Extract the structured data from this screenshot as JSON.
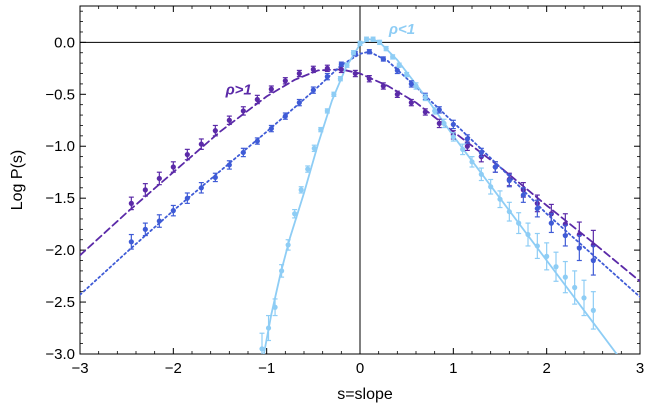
{
  "chart_data": {
    "type": "scatter",
    "title": "",
    "xlabel": "s=slope",
    "ylabel": "Log P(s)",
    "xlim": [
      -3,
      3
    ],
    "ylim": [
      -3,
      0.35
    ],
    "x_ticks": [
      -3,
      -2,
      -1,
      0,
      1,
      2,
      3
    ],
    "x_tick_labels": [
      "−3",
      "−2",
      "−1",
      "0",
      "1",
      "2",
      "3"
    ],
    "y_ticks": [
      -3,
      -2.5,
      -2,
      -1.5,
      -1,
      -0.5,
      0
    ],
    "y_tick_labels": [
      "−3.0",
      "−2.5",
      "−2.0",
      "−1.5",
      "−1.0",
      "−0.5",
      "0.0"
    ],
    "grid": false,
    "reference_lines": {
      "x": 0,
      "y": 0
    },
    "annotations": [
      {
        "text": "ρ>1",
        "x": -1.3,
        "y": -0.5,
        "series": "ρ>1"
      },
      {
        "text": "ρ<1",
        "x": 0.45,
        "y": 0.08,
        "series": "ρ<1"
      }
    ],
    "series": [
      {
        "name": "ρ>1",
        "color": "#5b2aa8",
        "fit_style": "dashed",
        "x": [
          -2.45,
          -2.3,
          -2.15,
          -2.0,
          -1.85,
          -1.7,
          -1.55,
          -1.4,
          -1.25,
          -1.1,
          -0.95,
          -0.8,
          -0.65,
          -0.5,
          -0.35,
          -0.2,
          -0.05,
          0.1,
          0.25,
          0.4,
          0.55,
          0.7,
          0.85,
          1.0,
          1.15,
          1.3,
          1.45,
          1.6,
          1.75,
          1.9,
          2.05,
          2.2,
          2.35,
          2.5
        ],
        "y": [
          -1.55,
          -1.42,
          -1.31,
          -1.2,
          -1.08,
          -0.98,
          -0.85,
          -0.75,
          -0.66,
          -0.55,
          -0.45,
          -0.37,
          -0.3,
          -0.26,
          -0.25,
          -0.26,
          -0.3,
          -0.35,
          -0.42,
          -0.5,
          -0.58,
          -0.67,
          -0.78,
          -0.89,
          -1.0,
          -1.1,
          -1.2,
          -1.32,
          -1.42,
          -1.55,
          -1.65,
          -1.75,
          -1.85,
          -1.95
        ],
        "err": [
          0.06,
          0.06,
          0.06,
          0.05,
          0.05,
          0.05,
          0.05,
          0.04,
          0.04,
          0.04,
          0.03,
          0.03,
          0.03,
          0.03,
          0.03,
          0.03,
          0.03,
          0.03,
          0.03,
          0.03,
          0.03,
          0.03,
          0.04,
          0.04,
          0.04,
          0.05,
          0.05,
          0.06,
          0.07,
          0.08,
          0.09,
          0.1,
          0.12,
          0.14
        ],
        "fit": {
          "x": [
            -3.0,
            -2.5,
            -2.0,
            -1.5,
            -1.0,
            -0.7,
            -0.45,
            -0.2,
            0.0,
            0.3,
            0.6,
            1.0,
            1.5,
            2.0,
            2.5,
            3.0
          ],
          "y": [
            -2.05,
            -1.64,
            -1.25,
            -0.86,
            -0.52,
            -0.36,
            -0.27,
            -0.26,
            -0.3,
            -0.42,
            -0.58,
            -0.86,
            -1.2,
            -1.57,
            -1.93,
            -2.3
          ]
        }
      },
      {
        "name": "ρ≈1",
        "color": "#3f5bd6",
        "fit_style": "dotted",
        "x": [
          -2.45,
          -2.3,
          -2.15,
          -2.0,
          -1.85,
          -1.7,
          -1.55,
          -1.4,
          -1.25,
          -1.1,
          -0.95,
          -0.8,
          -0.65,
          -0.5,
          -0.35,
          -0.2,
          -0.05,
          0.1,
          0.25,
          0.4,
          0.55,
          0.7,
          0.85,
          1.0,
          1.15,
          1.3,
          1.45,
          1.6,
          1.75,
          1.9,
          2.05,
          2.2,
          2.35,
          2.5
        ],
        "y": [
          -1.92,
          -1.8,
          -1.72,
          -1.62,
          -1.5,
          -1.4,
          -1.3,
          -1.18,
          -1.06,
          -0.95,
          -0.83,
          -0.71,
          -0.58,
          -0.46,
          -0.33,
          -0.21,
          -0.11,
          -0.09,
          -0.16,
          -0.27,
          -0.4,
          -0.52,
          -0.65,
          -0.79,
          -0.93,
          -1.06,
          -1.2,
          -1.33,
          -1.47,
          -1.6,
          -1.74,
          -1.86,
          -1.98,
          -2.1
        ],
        "err": [
          0.07,
          0.06,
          0.06,
          0.05,
          0.05,
          0.05,
          0.04,
          0.04,
          0.04,
          0.03,
          0.03,
          0.03,
          0.03,
          0.03,
          0.03,
          0.02,
          0.02,
          0.02,
          0.02,
          0.03,
          0.03,
          0.03,
          0.03,
          0.04,
          0.04,
          0.04,
          0.05,
          0.06,
          0.07,
          0.08,
          0.09,
          0.1,
          0.12,
          0.14
        ],
        "fit": {
          "x": [
            -3.0,
            -2.5,
            -2.0,
            -1.5,
            -1.0,
            -0.5,
            -0.2,
            0.0,
            0.1,
            0.3,
            0.6,
            1.0,
            1.5,
            2.0,
            2.5,
            3.0
          ],
          "y": [
            -2.43,
            -2.02,
            -1.62,
            -1.24,
            -0.86,
            -0.47,
            -0.22,
            -0.11,
            -0.09,
            -0.18,
            -0.43,
            -0.77,
            -1.2,
            -1.65,
            -2.05,
            -2.45
          ]
        }
      },
      {
        "name": "ρ<1",
        "color": "#8ecdf5",
        "fit_style": "solid",
        "x": [
          -1.05,
          -0.98,
          -0.91,
          -0.84,
          -0.77,
          -0.7,
          -0.63,
          -0.56,
          -0.49,
          -0.42,
          -0.35,
          -0.28,
          -0.21,
          -0.14,
          -0.07,
          0.0,
          0.07,
          0.14,
          0.21,
          0.28,
          0.35,
          0.42,
          0.5,
          0.6,
          0.7,
          0.8,
          0.9,
          1.0,
          1.1,
          1.2,
          1.3,
          1.4,
          1.5,
          1.6,
          1.7,
          1.8,
          1.9,
          2.0,
          2.1,
          2.2,
          2.3,
          2.4,
          2.5
        ],
        "y": [
          -2.95,
          -2.75,
          -2.55,
          -2.2,
          -1.95,
          -1.65,
          -1.42,
          -1.22,
          -1.02,
          -0.84,
          -0.66,
          -0.5,
          -0.35,
          -0.22,
          -0.1,
          -0.01,
          0.03,
          0.03,
          0.0,
          -0.06,
          -0.14,
          -0.22,
          -0.31,
          -0.42,
          -0.53,
          -0.66,
          -0.78,
          -0.91,
          -1.03,
          -1.15,
          -1.27,
          -1.39,
          -1.51,
          -1.63,
          -1.74,
          -1.85,
          -1.96,
          -2.06,
          -2.16,
          -2.26,
          -2.36,
          -2.46,
          -2.58
        ],
        "err": [
          0.15,
          0.12,
          0.08,
          0.06,
          0.05,
          0.04,
          0.03,
          0.03,
          0.03,
          0.02,
          0.02,
          0.02,
          0.02,
          0.02,
          0.02,
          0.02,
          0.02,
          0.02,
          0.02,
          0.02,
          0.02,
          0.02,
          0.02,
          0.03,
          0.03,
          0.03,
          0.04,
          0.04,
          0.05,
          0.05,
          0.06,
          0.07,
          0.08,
          0.09,
          0.1,
          0.11,
          0.12,
          0.13,
          0.14,
          0.15,
          0.16,
          0.17,
          0.18
        ],
        "fit": {
          "x": [
            -1.03,
            -0.95,
            -0.85,
            -0.75,
            -0.6,
            -0.45,
            -0.3,
            -0.15,
            0.0,
            0.1,
            0.2,
            0.4,
            0.7,
            1.0,
            1.5,
            2.0,
            2.5,
            3.0
          ],
          "y": [
            -3.0,
            -2.62,
            -2.22,
            -1.88,
            -1.45,
            -0.98,
            -0.56,
            -0.24,
            -0.02,
            0.03,
            0.01,
            -0.17,
            -0.52,
            -0.9,
            -1.5,
            -2.1,
            -2.7,
            -3.3
          ]
        }
      }
    ]
  }
}
